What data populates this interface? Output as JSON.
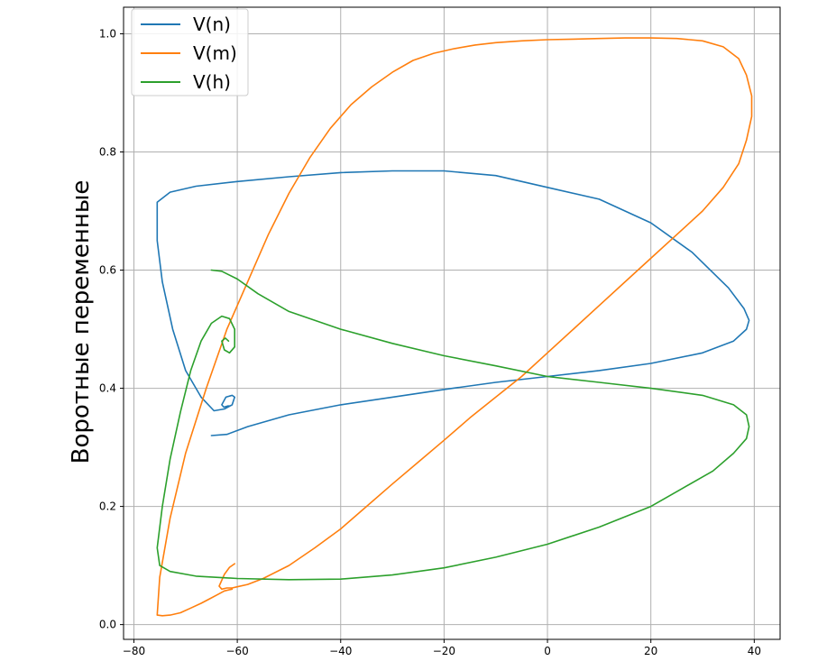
{
  "chart_data": {
    "type": "line",
    "title": "",
    "xlabel": "",
    "ylabel": "Воротные переменные",
    "xlim": [
      -82,
      45
    ],
    "ylim": [
      -0.025,
      1.045
    ],
    "xticks": [
      -80,
      -60,
      -40,
      -20,
      0,
      20,
      40
    ],
    "yticks": [
      0.0,
      0.2,
      0.4,
      0.6,
      0.8,
      1.0
    ],
    "xtick_labels": [
      "−80",
      "−60",
      "−40",
      "−20",
      "0",
      "20",
      "40"
    ],
    "ytick_labels": [
      "0.0",
      "0.2",
      "0.4",
      "0.6",
      "0.8",
      "1.0"
    ],
    "grid": true,
    "legend_position": "top-left",
    "series": [
      {
        "name": "V(n)",
        "color": "#1f77b4",
        "x": [
          -65,
          -62,
          -58,
          -50,
          -40,
          -30,
          -20,
          -10,
          0,
          10,
          20,
          30,
          36,
          38.5,
          39,
          38,
          35,
          28,
          20,
          10,
          0,
          -10,
          -20,
          -30,
          -40,
          -50,
          -60,
          -68,
          -73,
          -75.5,
          -75.5,
          -74.5,
          -72.5,
          -70,
          -67,
          -64.5,
          -62.5,
          -61,
          -60.5,
          -61,
          -62.2,
          -63,
          -62.6,
          -61.8,
          -61.5
        ],
        "y": [
          0.32,
          0.322,
          0.335,
          0.355,
          0.372,
          0.385,
          0.398,
          0.41,
          0.42,
          0.43,
          0.442,
          0.46,
          0.48,
          0.5,
          0.515,
          0.535,
          0.57,
          0.63,
          0.68,
          0.72,
          0.74,
          0.76,
          0.768,
          0.768,
          0.765,
          0.758,
          0.75,
          0.742,
          0.732,
          0.715,
          0.65,
          0.58,
          0.5,
          0.43,
          0.385,
          0.362,
          0.365,
          0.372,
          0.385,
          0.388,
          0.385,
          0.372,
          0.368,
          0.37,
          0.37
        ]
      },
      {
        "name": "V(m)",
        "color": "#ff7f0e",
        "x": [
          -61,
          -62.5,
          -64,
          -65.5,
          -67,
          -69,
          -71,
          -73,
          -74.5,
          -75.5,
          -75,
          -73,
          -70,
          -66,
          -62,
          -58,
          -54,
          -50,
          -46,
          -42,
          -38,
          -34,
          -30,
          -26,
          -22,
          -18,
          -14,
          -10,
          -5,
          0,
          5,
          10,
          15,
          20,
          25,
          30,
          34,
          37,
          38.5,
          39.5,
          39.5,
          38.5,
          37,
          34,
          30,
          25,
          20,
          15,
          10,
          5,
          0,
          -5,
          -10,
          -15,
          -20,
          -25,
          -30,
          -35,
          -40,
          -45,
          -50,
          -55,
          -58,
          -60,
          -61,
          -62,
          -63,
          -63.5,
          -62.5,
          -61.5,
          -60.5
        ],
        "y": [
          0.06,
          0.057,
          0.05,
          0.043,
          0.036,
          0.028,
          0.02,
          0.016,
          0.015,
          0.016,
          0.08,
          0.18,
          0.29,
          0.4,
          0.5,
          0.58,
          0.66,
          0.73,
          0.79,
          0.84,
          0.88,
          0.91,
          0.935,
          0.955,
          0.967,
          0.975,
          0.981,
          0.985,
          0.988,
          0.99,
          0.991,
          0.992,
          0.993,
          0.993,
          0.992,
          0.988,
          0.978,
          0.958,
          0.93,
          0.895,
          0.86,
          0.82,
          0.78,
          0.74,
          0.7,
          0.66,
          0.62,
          0.58,
          0.54,
          0.5,
          0.46,
          0.42,
          0.385,
          0.35,
          0.312,
          0.275,
          0.238,
          0.2,
          0.162,
          0.13,
          0.1,
          0.078,
          0.068,
          0.064,
          0.062,
          0.062,
          0.06,
          0.065,
          0.085,
          0.097,
          0.103
        ]
      },
      {
        "name": "V(h)",
        "color": "#2ca02c",
        "x": [
          -65,
          -63,
          -60,
          -56,
          -50,
          -40,
          -30,
          -20,
          -10,
          0,
          10,
          20,
          30,
          36,
          38.5,
          39,
          38.5,
          36,
          32,
          26,
          20,
          10,
          0,
          -10,
          -20,
          -30,
          -40,
          -50,
          -60,
          -68,
          -73,
          -75,
          -75.5,
          -74.5,
          -73,
          -71,
          -69,
          -67,
          -65,
          -63,
          -61.5,
          -60.5,
          -60.5,
          -61.5,
          -62.5,
          -63,
          -62.3,
          -61.7
        ],
        "y": [
          0.6,
          0.598,
          0.585,
          0.56,
          0.53,
          0.5,
          0.476,
          0.455,
          0.438,
          0.42,
          0.41,
          0.4,
          0.388,
          0.372,
          0.355,
          0.335,
          0.315,
          0.29,
          0.26,
          0.23,
          0.2,
          0.165,
          0.136,
          0.114,
          0.096,
          0.084,
          0.077,
          0.076,
          0.078,
          0.082,
          0.09,
          0.1,
          0.13,
          0.2,
          0.28,
          0.36,
          0.43,
          0.48,
          0.51,
          0.522,
          0.518,
          0.5,
          0.47,
          0.46,
          0.465,
          0.48,
          0.485,
          0.48
        ]
      }
    ]
  }
}
